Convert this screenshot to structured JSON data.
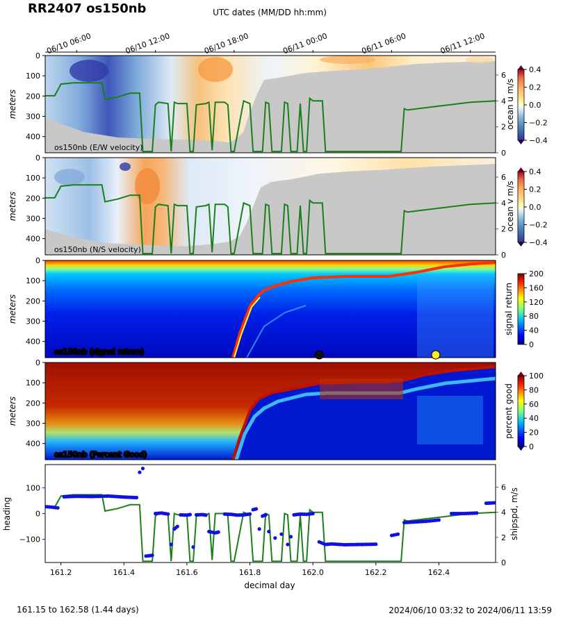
{
  "figure": {
    "title": "RR2407 os150nb",
    "top_axis_label": "UTC dates (MM/DD hh:mm)",
    "footer_left": "161.15 to 162.58 (1.44 days)",
    "footer_right": "2024/06/10 03:32 to 2024/06/11 13:59"
  },
  "colors": {
    "ship_speed_line": "#1a7f1a",
    "heading_points": "#1010e0",
    "no_data": "#c8c8c8"
  },
  "chart_data": [
    {
      "type": "heatmap",
      "panel_label": "os150nb (E/W velocity)",
      "ylabel": "meters",
      "colorbar_label": "ocean u m/s",
      "colormap": "RdYlBu_r",
      "clim": [
        -0.4,
        0.4
      ],
      "colorbar_ticks": [
        "0.4",
        "0.2",
        "0.0",
        "−0.2",
        "−0.4"
      ],
      "ylim": [
        480,
        0
      ],
      "y_ticks": [
        "0",
        "100",
        "200",
        "300",
        "400"
      ],
      "right_axis_ticks": [
        "0",
        "2",
        "4",
        "6"
      ],
      "right_axis_ylim": [
        0,
        7.5
      ],
      "overlay_series": "ship speed m/s"
    },
    {
      "type": "heatmap",
      "panel_label": "os150nb (N/S velocity)",
      "ylabel": "meters",
      "colorbar_label": "ocean v m/s",
      "colormap": "RdYlBu_r",
      "clim": [
        -0.4,
        0.4
      ],
      "colorbar_ticks": [
        "0.4",
        "0.2",
        "0.0",
        "−0.2",
        "−0.4"
      ],
      "ylim": [
        480,
        0
      ],
      "y_ticks": [
        "0",
        "100",
        "200",
        "300",
        "400"
      ],
      "right_axis_ticks": [
        "0",
        "2",
        "4",
        "6"
      ],
      "right_axis_ylim": [
        0,
        7.5
      ],
      "overlay_series": "ship speed m/s"
    },
    {
      "type": "heatmap",
      "panel_label": "os150nb (signal return)",
      "ylabel": "meters",
      "colorbar_label": "signal return",
      "colormap": "jet",
      "clim": [
        0,
        200
      ],
      "colorbar_ticks": [
        "200",
        "160",
        "120",
        "80",
        "40",
        "0"
      ],
      "ylim": [
        480,
        0
      ],
      "y_ticks": [
        "0",
        "100",
        "200",
        "300",
        "400"
      ],
      "markers": [
        {
          "x": 162.02,
          "color": "#111111"
        },
        {
          "x": 162.39,
          "color": "#ffee22"
        }
      ]
    },
    {
      "type": "heatmap",
      "panel_label": "os150nb (Percent Good)",
      "ylabel": "meters",
      "colorbar_label": "percent good",
      "colormap": "jet",
      "clim": [
        0,
        100
      ],
      "colorbar_ticks": [
        "100",
        "80",
        "60",
        "40",
        "20",
        "0"
      ],
      "ylim": [
        480,
        0
      ],
      "y_ticks": [
        "0",
        "100",
        "200",
        "300",
        "400"
      ]
    },
    {
      "type": "scatter",
      "xlabel": "decimal day",
      "ylabel": "heading",
      "ylabel_right": "shipspd, m/s",
      "xlim": [
        161.15,
        162.58
      ],
      "ylim": [
        -190,
        190
      ],
      "x_ticks": [
        "161.2",
        "161.4",
        "161.6",
        "161.8",
        "162.0",
        "162.2",
        "162.4"
      ],
      "y_ticks": [
        "100",
        "0",
        "−100"
      ],
      "y_right_ticks": [
        "0",
        "2",
        "4",
        "6"
      ],
      "y_right_lim": [
        0,
        7.8
      ]
    }
  ],
  "date_ticks": [
    {
      "label": "06/10 06:00",
      "x": 161.25
    },
    {
      "label": "06/10 12:00",
      "x": 161.5
    },
    {
      "label": "06/10 18:00",
      "x": 161.75
    },
    {
      "label": "06/11 00:00",
      "x": 162.0
    },
    {
      "label": "06/11 06:00",
      "x": 162.25
    },
    {
      "label": "06/11 12:00",
      "x": 162.5
    }
  ],
  "ship_speed": {
    "x": [
      161.15,
      161.18,
      161.2,
      161.24,
      161.3,
      161.33,
      161.34,
      161.38,
      161.42,
      161.45,
      161.46,
      161.47,
      161.49,
      161.5,
      161.51,
      161.54,
      161.55,
      161.56,
      161.57,
      161.6,
      161.61,
      161.62,
      161.63,
      161.66,
      161.67,
      161.68,
      161.69,
      161.72,
      161.73,
      161.74,
      161.75,
      161.78,
      161.79,
      161.8,
      161.81,
      161.84,
      161.85,
      161.86,
      161.87,
      161.9,
      161.91,
      161.92,
      161.93,
      161.95,
      161.96,
      161.97,
      161.98,
      161.99,
      162.0,
      162.03,
      162.04,
      162.06,
      162.1,
      162.2,
      162.27,
      162.28,
      162.29,
      162.3,
      162.4,
      162.5,
      162.58
    ],
    "y": [
      4.4,
      4.4,
      5.3,
      5.4,
      5.4,
      5.4,
      4.1,
      4.3,
      4.6,
      4.6,
      0.1,
      0.1,
      0.1,
      3.7,
      3.9,
      3.8,
      0.1,
      3.9,
      3.8,
      3.8,
      0.1,
      0.1,
      3.7,
      3.8,
      3.9,
      0.2,
      3.9,
      3.9,
      3.7,
      0.1,
      0.1,
      4.0,
      3.9,
      3.8,
      0.1,
      0.1,
      3.9,
      3.8,
      0.1,
      0.1,
      3.9,
      3.8,
      0.1,
      0.1,
      3.8,
      0.1,
      0.1,
      4.2,
      4.0,
      4.0,
      0.1,
      0.1,
      0.1,
      0.1,
      0.1,
      0.1,
      3.4,
      3.3,
      3.6,
      3.9,
      4.0
    ]
  },
  "heading": {
    "x": [
      161.15,
      161.17,
      161.19,
      161.21,
      161.25,
      161.3,
      161.35,
      161.4,
      161.44,
      161.45,
      161.46,
      161.47,
      161.49,
      161.5,
      161.52,
      161.54,
      161.55,
      161.56,
      161.57,
      161.58,
      161.6,
      161.61,
      161.62,
      161.63,
      161.65,
      161.66,
      161.67,
      161.69,
      161.7,
      161.72,
      161.74,
      161.76,
      161.78,
      161.8,
      161.81,
      161.82,
      161.83,
      161.84,
      161.85,
      161.86,
      161.88,
      161.9,
      161.92,
      161.93,
      161.94,
      161.96,
      161.98,
      162.0,
      162.02,
      162.04,
      162.06,
      162.1,
      162.15,
      162.2,
      162.25,
      162.27,
      162.29,
      162.32,
      162.36,
      162.4,
      162.44,
      162.48,
      162.52,
      162.55,
      162.58
    ],
    "y": [
      27,
      25,
      22,
      65,
      67,
      66,
      68,
      64,
      62,
      160,
      175,
      -165,
      -162,
      0,
      2,
      -2,
      -120,
      -60,
      -50,
      -5,
      -6,
      -4,
      -130,
      -5,
      -4,
      -6,
      -70,
      -75,
      -72,
      -2,
      -3,
      -6,
      -5,
      -2,
      15,
      18,
      -60,
      -10,
      -5,
      -70,
      -95,
      -80,
      -120,
      -90,
      -5,
      -2,
      -3,
      0,
      -110,
      -120,
      -118,
      -121,
      -120,
      -119,
      -85,
      -80,
      -35,
      -33,
      -30,
      -25,
      0,
      0,
      2,
      40,
      42
    ]
  }
}
